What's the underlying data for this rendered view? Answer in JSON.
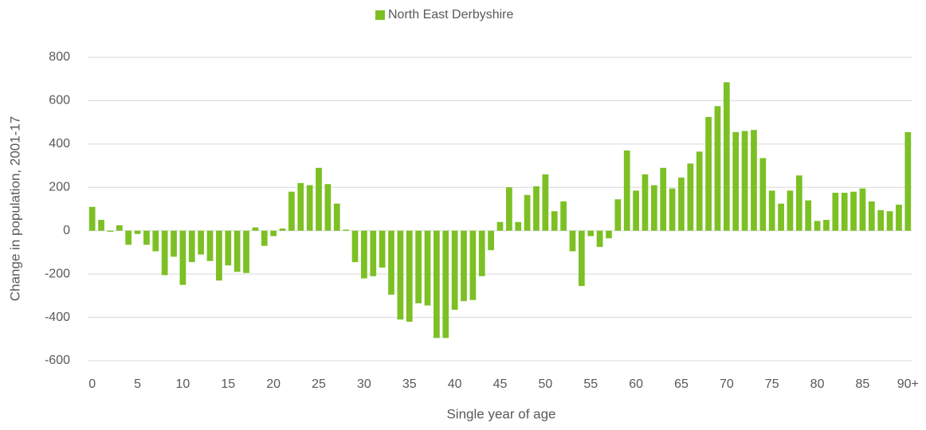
{
  "chart_data": {
    "type": "bar",
    "xlabel": "Single year of age",
    "ylabel": "Change in population, 2001-17",
    "categories": [
      "0",
      null,
      null,
      null,
      null,
      "5",
      null,
      null,
      null,
      null,
      "10",
      null,
      null,
      null,
      null,
      "15",
      null,
      null,
      null,
      null,
      "20",
      null,
      null,
      null,
      null,
      "25",
      null,
      null,
      null,
      null,
      "30",
      null,
      null,
      null,
      null,
      "35",
      null,
      null,
      null,
      null,
      "40",
      null,
      null,
      null,
      null,
      "45",
      null,
      null,
      null,
      null,
      "50",
      null,
      null,
      null,
      null,
      "55",
      null,
      null,
      null,
      null,
      "60",
      null,
      null,
      null,
      null,
      "65",
      null,
      null,
      null,
      null,
      "70",
      null,
      null,
      null,
      null,
      "75",
      null,
      null,
      null,
      null,
      "80",
      null,
      null,
      null,
      null,
      "85",
      null,
      null,
      null,
      null,
      "90+"
    ],
    "series": [
      {
        "name": "North East Derbyshire",
        "color": "#7cc024",
        "values": [
          110,
          50,
          -5,
          25,
          -65,
          -15,
          -65,
          -95,
          -205,
          -120,
          -250,
          -145,
          -110,
          -140,
          -230,
          -160,
          -190,
          -195,
          15,
          -70,
          -25,
          10,
          180,
          220,
          210,
          290,
          215,
          125,
          5,
          -145,
          -220,
          -210,
          -170,
          -295,
          -410,
          -420,
          -335,
          -345,
          -495,
          -495,
          -365,
          -325,
          -320,
          -210,
          -90,
          40,
          200,
          40,
          165,
          205,
          260,
          90,
          135,
          -95,
          -255,
          -25,
          -75,
          -35,
          145,
          370,
          185,
          260,
          210,
          290,
          195,
          245,
          310,
          365,
          525,
          575,
          685,
          455,
          460,
          465,
          335,
          185,
          125,
          185,
          255,
          140,
          45,
          50,
          175,
          175,
          180,
          195,
          135,
          95,
          90,
          120,
          455
        ]
      }
    ],
    "ylim": [
      -600,
      800
    ],
    "yticks": [
      -600,
      -400,
      -200,
      0,
      200,
      400,
      600,
      800
    ],
    "grid": true,
    "legend": "top"
  }
}
